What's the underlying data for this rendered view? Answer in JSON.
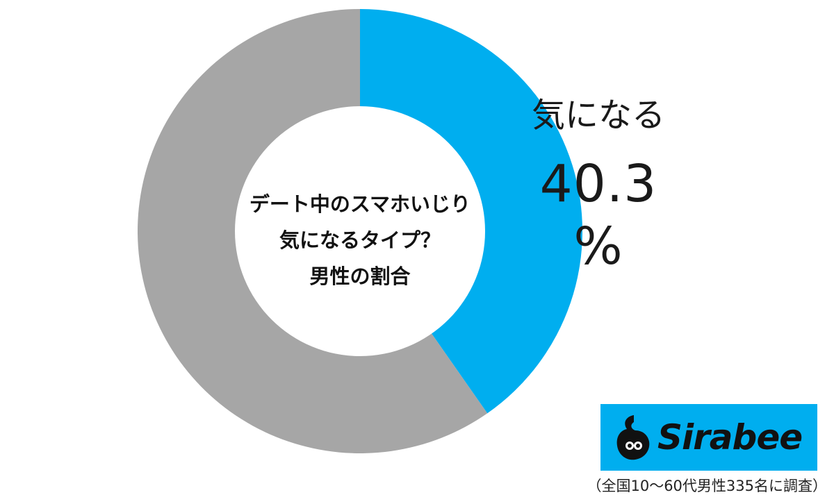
{
  "chart_data": {
    "type": "pie",
    "title": "デート中のスマホいじり気になるタイプ？男性の割合",
    "title_lines": [
      "デート中のスマホいじり",
      "気になるタイプ？",
      "男性の割合"
    ],
    "slices": [
      {
        "label": "気になる",
        "value": 40.3,
        "color": "#00aeef",
        "value_text": "40.3 %"
      },
      {
        "value": 59.7,
        "color": "#a6a6a6"
      }
    ],
    "style": "donut"
  },
  "logo": {
    "text": "Sirabee",
    "background": "#00aeef"
  },
  "footnote": "（全国10～60代男性335名に調査）"
}
